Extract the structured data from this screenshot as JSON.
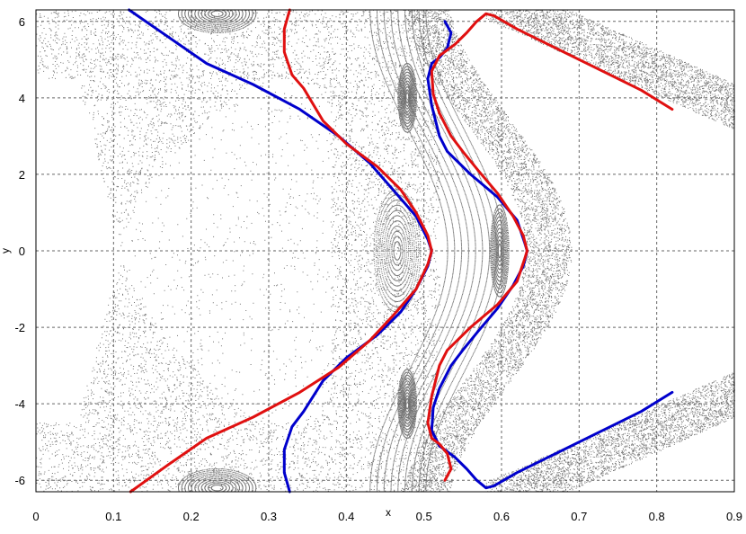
{
  "chart_data": {
    "type": "scatter",
    "title": "",
    "xlabel": "x",
    "ylabel": "y",
    "xlim": [
      0,
      0.9
    ],
    "ylim": [
      -6.3,
      6.3
    ],
    "xticks": [
      0,
      0.1,
      0.2,
      0.3,
      0.4,
      0.5,
      0.6,
      0.7,
      0.8,
      0.9
    ],
    "xtick_labels": [
      "0",
      "0.1",
      "0.2",
      "0.3",
      "0.4",
      "0.5",
      "0.6",
      "0.7",
      "0.8",
      "0.9"
    ],
    "yticks": [
      -6,
      -4,
      -2,
      0,
      2,
      4,
      6
    ],
    "ytick_labels": [
      "-6",
      "-4",
      "-2",
      "0",
      "2",
      "4",
      "6"
    ],
    "grid": true,
    "legend": "none",
    "background_scatter": {
      "color": "#000000",
      "description_regions": [
        {
          "kind": "island-center",
          "x": 0.465,
          "y": 0
        },
        {
          "kind": "island-center",
          "x": 0.597,
          "y": 0
        },
        {
          "kind": "island-center",
          "x": 0.478,
          "y": 4
        },
        {
          "kind": "island-center",
          "x": 0.478,
          "y": -4
        },
        {
          "kind": "island-center",
          "x": 0.233,
          "y": 6.2
        },
        {
          "kind": "island-center",
          "x": 0.233,
          "y": -6.2
        }
      ]
    },
    "series": [
      {
        "color": "#0000cc",
        "segments": [
          [
            [
              0.12,
              6.3
            ],
            [
              0.17,
              5.6
            ],
            [
              0.22,
              4.9
            ],
            [
              0.28,
              4.35
            ],
            [
              0.34,
              3.7
            ],
            [
              0.39,
              3.0
            ],
            [
              0.43,
              2.3
            ],
            [
              0.46,
              1.6
            ],
            [
              0.49,
              0.9
            ],
            [
              0.505,
              0.3
            ],
            [
              0.51,
              0.0
            ],
            [
              0.505,
              -0.4
            ],
            [
              0.49,
              -1.0
            ],
            [
              0.47,
              -1.6
            ],
            [
              0.44,
              -2.2
            ],
            [
              0.4,
              -2.8
            ],
            [
              0.37,
              -3.4
            ],
            [
              0.345,
              -4.2
            ],
            [
              0.33,
              -4.6
            ],
            [
              0.32,
              -5.2
            ],
            [
              0.32,
              -5.8
            ],
            [
              0.327,
              -6.3
            ]
          ],
          [
            [
              0.527,
              6.0
            ],
            [
              0.535,
              5.7
            ],
            [
              0.53,
              5.3
            ],
            [
              0.52,
              5.05
            ],
            [
              0.51,
              4.9
            ],
            [
              0.505,
              4.5
            ],
            [
              0.51,
              3.8
            ],
            [
              0.52,
              3.0
            ],
            [
              0.53,
              2.6
            ],
            [
              0.56,
              2.0
            ],
            [
              0.595,
              1.4
            ],
            [
              0.62,
              0.8
            ],
            [
              0.63,
              0.2
            ],
            [
              0.633,
              0.0
            ],
            [
              0.628,
              -0.4
            ],
            [
              0.615,
              -0.9
            ],
            [
              0.595,
              -1.5
            ],
            [
              0.57,
              -2.1
            ],
            [
              0.55,
              -2.6
            ],
            [
              0.535,
              -3.0
            ],
            [
              0.52,
              -3.6
            ],
            [
              0.512,
              -4.1
            ],
            [
              0.51,
              -4.7
            ],
            [
              0.52,
              -5.1
            ],
            [
              0.54,
              -5.4
            ],
            [
              0.555,
              -5.7
            ],
            [
              0.568,
              -6.0
            ],
            [
              0.58,
              -6.2
            ],
            [
              0.59,
              -6.15
            ],
            [
              0.62,
              -5.8
            ],
            [
              0.66,
              -5.4
            ],
            [
              0.7,
              -5.0
            ],
            [
              0.74,
              -4.6
            ],
            [
              0.78,
              -4.2
            ],
            [
              0.82,
              -3.7
            ]
          ]
        ]
      },
      {
        "color": "#e01010",
        "segments": [
          [
            [
              0.122,
              -6.3
            ],
            [
              0.17,
              -5.6
            ],
            [
              0.22,
              -4.9
            ],
            [
              0.28,
              -4.35
            ],
            [
              0.34,
              -3.7
            ],
            [
              0.39,
              -3.05
            ],
            [
              0.43,
              -2.35
            ],
            [
              0.46,
              -1.7
            ],
            [
              0.49,
              -1.0
            ],
            [
              0.505,
              -0.35
            ],
            [
              0.51,
              0.0
            ],
            [
              0.505,
              0.4
            ],
            [
              0.49,
              1.0
            ],
            [
              0.47,
              1.6
            ],
            [
              0.44,
              2.2
            ],
            [
              0.4,
              2.8
            ],
            [
              0.37,
              3.4
            ],
            [
              0.345,
              4.25
            ],
            [
              0.33,
              4.6
            ],
            [
              0.32,
              5.2
            ],
            [
              0.32,
              5.8
            ],
            [
              0.327,
              6.3
            ]
          ],
          [
            [
              0.527,
              -6.0
            ],
            [
              0.535,
              -5.7
            ],
            [
              0.53,
              -5.3
            ],
            [
              0.52,
              -5.05
            ],
            [
              0.51,
              -4.9
            ],
            [
              0.505,
              -4.5
            ],
            [
              0.51,
              -3.8
            ],
            [
              0.52,
              -3.0
            ],
            [
              0.53,
              -2.6
            ],
            [
              0.56,
              -2.0
            ],
            [
              0.595,
              -1.4
            ],
            [
              0.62,
              -0.8
            ],
            [
              0.63,
              -0.2
            ],
            [
              0.633,
              0.0
            ],
            [
              0.628,
              0.4
            ],
            [
              0.615,
              0.9
            ],
            [
              0.595,
              1.5
            ],
            [
              0.57,
              2.1
            ],
            [
              0.55,
              2.6
            ],
            [
              0.535,
              3.0
            ],
            [
              0.52,
              3.6
            ],
            [
              0.512,
              4.1
            ],
            [
              0.51,
              4.7
            ],
            [
              0.52,
              5.1
            ],
            [
              0.54,
              5.4
            ],
            [
              0.555,
              5.7
            ],
            [
              0.568,
              6.0
            ],
            [
              0.58,
              6.2
            ],
            [
              0.59,
              6.15
            ],
            [
              0.62,
              5.8
            ],
            [
              0.66,
              5.4
            ],
            [
              0.7,
              5.0
            ],
            [
              0.74,
              4.6
            ],
            [
              0.78,
              4.2
            ],
            [
              0.82,
              3.7
            ]
          ]
        ]
      }
    ]
  }
}
